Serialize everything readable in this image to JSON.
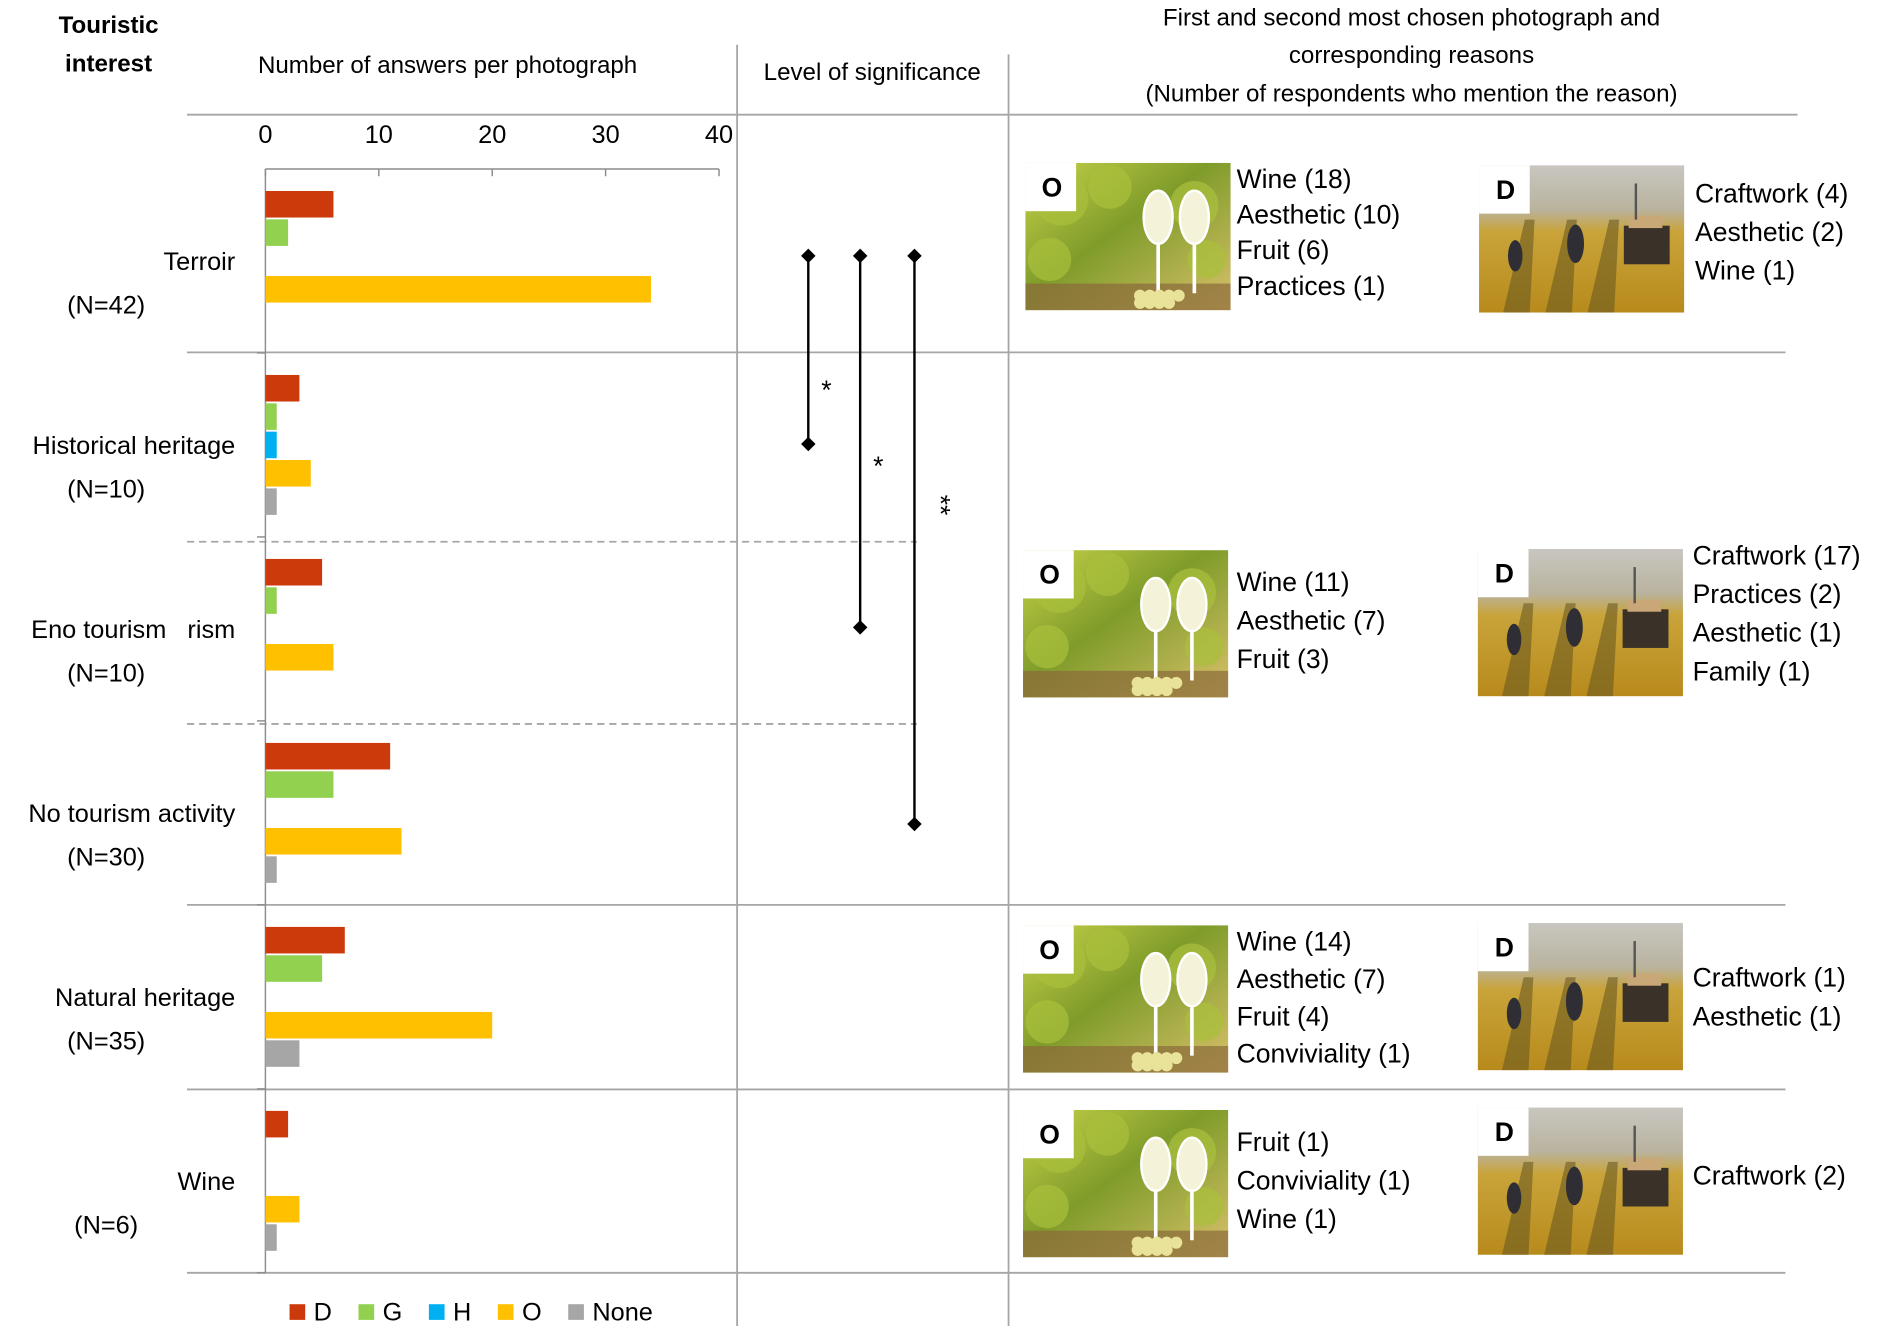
{
  "header": {
    "row_label": [
      "Touristic",
      "interest"
    ],
    "significance": "Level of significance",
    "photos": [
      "First and second most chosen photograph and",
      "corresponding reasons",
      "(Number of respondents who mention the reason)"
    ]
  },
  "chart_data": {
    "type": "bar",
    "orientation": "horizontal",
    "title": "Number of answers per photograph",
    "categories": [
      "Terroir",
      "Historical heritage",
      "Eno tourism   rism",
      "No tourism activity",
      "Natural heritage",
      "Wine"
    ],
    "category_notes": [
      "(N=42)",
      "(N=10)",
      "(N=10)",
      "(N=30)",
      "(N=35)",
      "(N=6)"
    ],
    "series": [
      {
        "name": "D",
        "color": "#cc3a0c",
        "values": [
          6,
          3,
          5,
          11,
          7,
          2
        ]
      },
      {
        "name": "G",
        "color": "#92d050",
        "values": [
          2,
          1,
          1,
          6,
          5,
          0
        ]
      },
      {
        "name": "H",
        "color": "#00b0f0",
        "values": [
          0,
          1,
          0,
          0,
          0,
          0
        ]
      },
      {
        "name": "O",
        "color": "#ffc000",
        "values": [
          34,
          4,
          6,
          12,
          20,
          3
        ]
      },
      {
        "name": "None",
        "color": "#a6a6a6",
        "values": [
          0,
          1,
          0,
          1,
          3,
          1
        ]
      }
    ],
    "xlim": [
      0,
      40
    ],
    "xticks": [
      0,
      10,
      20,
      30,
      40
    ],
    "legend": "bottom"
  },
  "significance": {
    "labels": [
      "*",
      "*",
      "**"
    ]
  },
  "photo_reasons": [
    {
      "first": {
        "photo": "O",
        "reasons": [
          "Wine (18)",
          "Aesthetic (10)",
          "Fruit (6)",
          "Practices (1)"
        ]
      },
      "second": {
        "photo": "D",
        "reasons": [
          "Craftwork (4)",
          "Aesthetic (2)",
          "Wine (1)"
        ]
      }
    },
    {
      "first": {
        "photo": "O",
        "reasons": [
          "Wine (11)",
          "Aesthetic (7)",
          "Fruit (3)"
        ]
      },
      "second": {
        "photo": "D",
        "reasons": [
          "Craftwork (17)",
          "Practices (2)",
          "Aesthetic (1)",
          "Family (1)"
        ]
      }
    },
    {
      "first": {
        "photo": "O",
        "reasons": [
          "Wine (14)",
          "Aesthetic (7)",
          "Fruit (4)",
          "Conviviality (1)"
        ]
      },
      "second": {
        "photo": "D",
        "reasons": [
          "Craftwork (1)",
          "Aesthetic (1)"
        ]
      }
    },
    {
      "first": {
        "photo": "O",
        "reasons": [
          "Fruit (1)",
          "Conviviality (1)",
          "Wine (1)"
        ]
      },
      "second": {
        "photo": "D",
        "reasons": [
          "Craftwork (2)"
        ]
      }
    }
  ]
}
